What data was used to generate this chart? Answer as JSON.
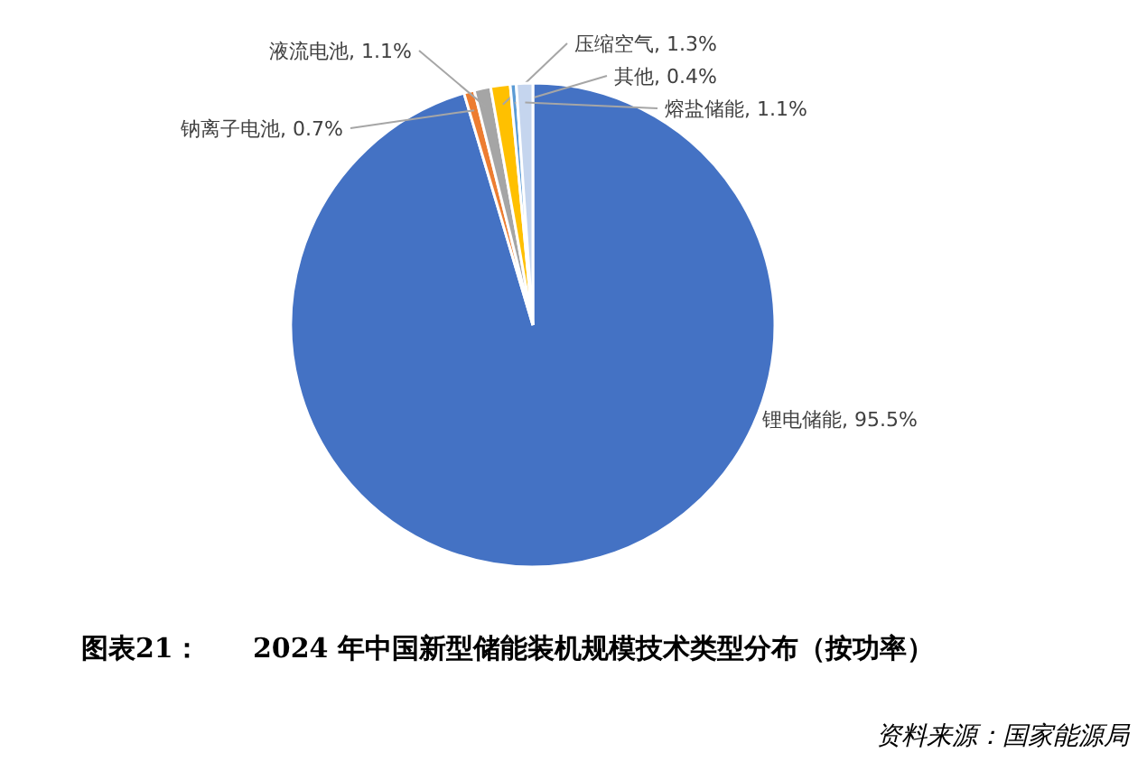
{
  "chart_data": {
    "type": "pie",
    "title": "2024 年中国新型储能装机规模技术类型分布（按功率）",
    "categories": [
      "锂电储能",
      "钠离子电池",
      "液流电池",
      "压缩空气",
      "其他",
      "熔盐储能"
    ],
    "values": [
      95.5,
      0.7,
      1.1,
      1.3,
      0.4,
      1.1
    ],
    "value_labels": [
      ", 95.5%",
      ", 0.7%",
      ", 1.1%",
      ", 1.3%",
      ", 0.4%",
      ", 1.1%"
    ],
    "colors": [
      "#4472c4",
      "#ed7d31",
      "#a5a5a5",
      "#ffc000",
      "#5b9bd5",
      "#c5d5ee"
    ],
    "annotations": [
      "图表21：",
      "资料来源：国家能源局"
    ]
  }
}
